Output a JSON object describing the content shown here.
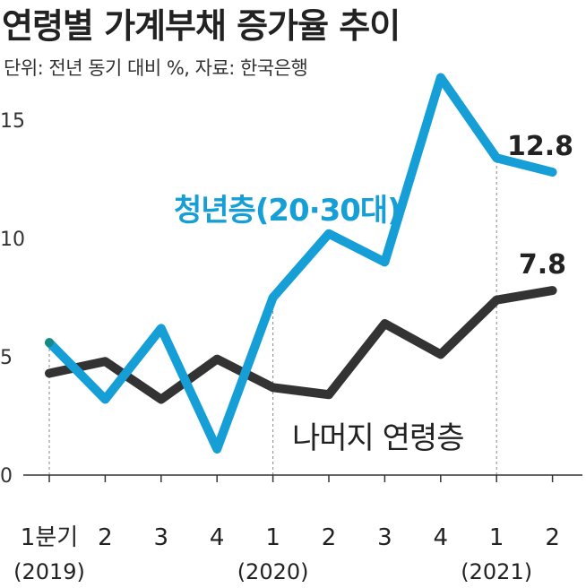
{
  "title": "연령별 가계부채 증가율 추이",
  "subtitle": "단위: 전년 동기 대비 %, 자료: 한국은행",
  "chart_data": {
    "type": "line",
    "title": "연령별 가계부채 증가율 추이",
    "unit_note": "단위: 전년 동기 대비 %, 자료: 한국은행",
    "categories": [
      "1분기",
      "2",
      "3",
      "4",
      "1",
      "2",
      "3",
      "4",
      "1",
      "2"
    ],
    "years": [
      {
        "label": "(2019)",
        "index": 0
      },
      {
        "label": "(2020)",
        "index": 4
      },
      {
        "label": "(2021)",
        "index": 8
      }
    ],
    "ylim": [
      0,
      17.5
    ],
    "yticks": [
      "0",
      "5",
      "10",
      "15"
    ],
    "series": [
      {
        "name": "청년층(20·30대)",
        "color": "#159fd6",
        "values": [
          5.6,
          3.2,
          6.2,
          1.1,
          7.5,
          10.2,
          9.0,
          16.8,
          13.4,
          12.8
        ],
        "end_label": "12.8"
      },
      {
        "name": "나머지 연령층",
        "color": "#333333",
        "values": [
          4.3,
          4.8,
          3.2,
          4.9,
          3.7,
          3.4,
          6.4,
          5.1,
          7.4,
          7.8
        ],
        "end_label": "7.8"
      }
    ],
    "start_marker_color": "#168a85",
    "grid": false,
    "vertical_guides": "dashed, at first quarter of each year"
  }
}
